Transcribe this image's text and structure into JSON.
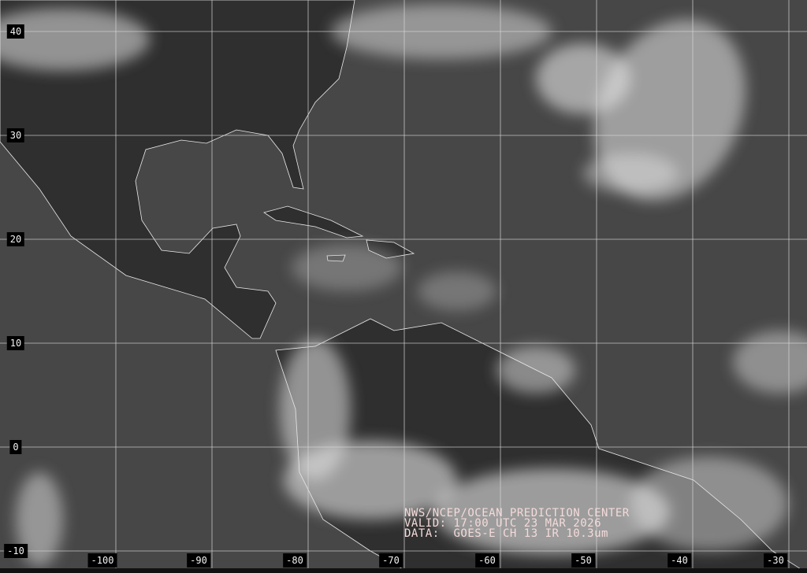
{
  "map": {
    "product": "GOES-E infrared satellite image",
    "grid": {
      "latitudes": [
        40,
        30,
        20,
        10,
        0,
        -10
      ],
      "longitudes": [
        -100,
        -90,
        -80,
        -70,
        -60,
        -50,
        -40,
        -30
      ],
      "line_color": "#d8d8d8"
    },
    "lat_labels": [
      "40",
      "30",
      "20",
      "10",
      "0",
      "-10"
    ],
    "lon_labels": [
      "-100",
      "-90",
      "-80",
      "-70",
      "-60",
      "-50",
      "-40",
      "-30"
    ],
    "caption": {
      "line1": "NWS/NCEP/OCEAN PREDICTION CENTER",
      "line2": "VALID: 17:00 UTC 23 MAR 2026",
      "line3": "DATA:  GOES-E CH 13 IR 10.3um",
      "color": "#f5dada"
    },
    "colors": {
      "ocean": "#474747",
      "land": "#2e2e2e",
      "cloud": "#e6e6e6",
      "coastline": "#ffffff"
    }
  }
}
